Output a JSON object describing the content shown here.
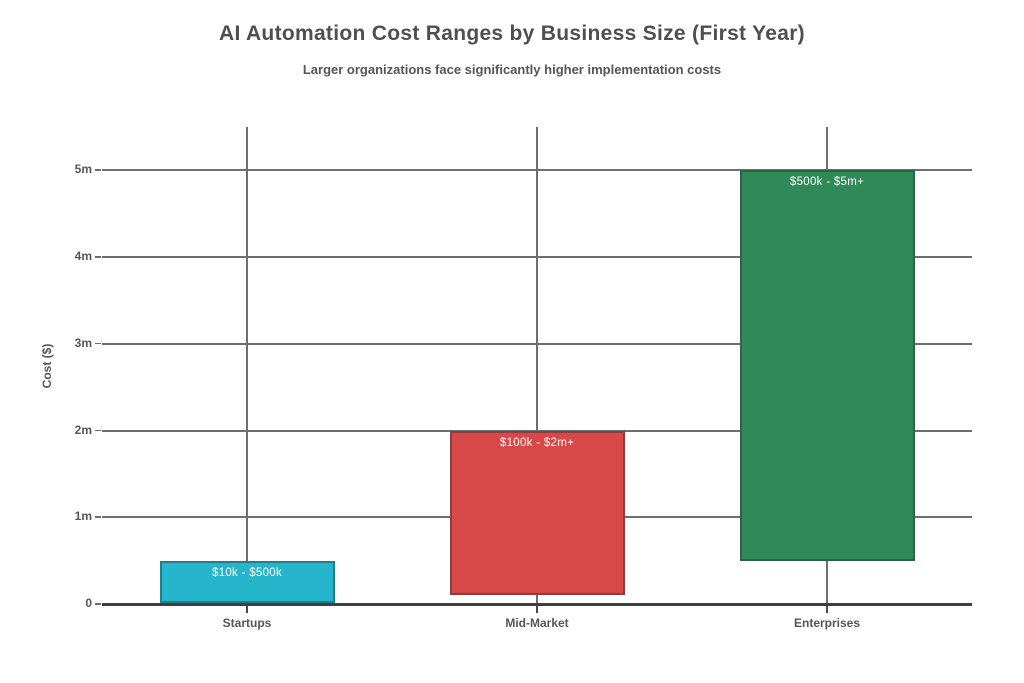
{
  "chart_data": {
    "type": "bar",
    "subtype": "floating_range_bars",
    "title": "AI Automation Cost Ranges by Business Size (First Year)",
    "subtitle": "Larger organizations face significantly higher implementation costs",
    "xlabel": "",
    "ylabel": "Cost ($)",
    "ylim": [
      0,
      5500000
    ],
    "grid": true,
    "legend": false,
    "yticks": [
      {
        "value": 0,
        "label": "0"
      },
      {
        "value": 1000000,
        "label": "1m"
      },
      {
        "value": 2000000,
        "label": "2m"
      },
      {
        "value": 3000000,
        "label": "3m"
      },
      {
        "value": 4000000,
        "label": "4m"
      },
      {
        "value": 5000000,
        "label": "5m"
      }
    ],
    "categories": [
      "Startups",
      "Mid-Market",
      "Enterprises"
    ],
    "bars": [
      {
        "category": "Startups",
        "low": 10000,
        "high": 500000,
        "range_label": "$10k - $500k",
        "color": "#25b6cb"
      },
      {
        "category": "Mid-Market",
        "low": 100000,
        "high": 2000000,
        "range_label": "$100k - $2m+",
        "color": "#d94848"
      },
      {
        "category": "Enterprises",
        "low": 500000,
        "high": 5000000,
        "range_label": "$500k - $5m+",
        "color": "#2f8a58"
      }
    ],
    "colors": {
      "grid": "#6e6e6e",
      "axis": "#3f3f41",
      "text": "#55555a",
      "bar_label_text": "#ffffff",
      "background": "#ffffff"
    }
  }
}
